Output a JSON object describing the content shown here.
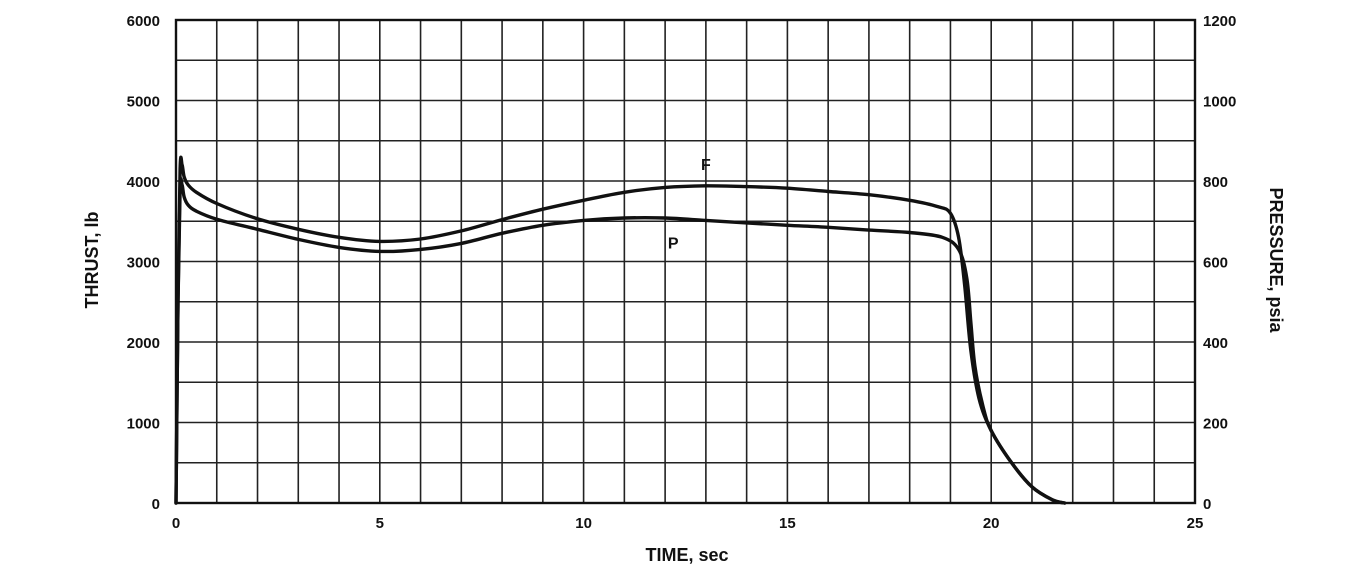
{
  "chart_data": {
    "type": "line",
    "title": "",
    "xlabel": "TIME, sec",
    "ylabel_left": "THRUST, lb",
    "ylabel_right": "PRESSURE, psia",
    "xlim": [
      0,
      25
    ],
    "ylim_left": [
      0,
      6000
    ],
    "ylim_right": [
      0,
      1200
    ],
    "grid": true,
    "x_ticks": [
      0,
      5,
      10,
      15,
      20,
      25
    ],
    "y_left_ticks": [
      0,
      1000,
      2000,
      3000,
      4000,
      5000,
      6000
    ],
    "y_right_ticks": [
      0,
      200,
      400,
      600,
      800,
      1000,
      1200
    ],
    "series": [
      {
        "name": "F",
        "axis": "left",
        "x": [
          0,
          0.05,
          0.1,
          0.15,
          0.2,
          0.3,
          0.5,
          1,
          2,
          3,
          4,
          5,
          6,
          7,
          8,
          9,
          10,
          11,
          12,
          13,
          14,
          15,
          16,
          17,
          18,
          18.7,
          19,
          19.2,
          19.35,
          19.5,
          19.7,
          20,
          20.5,
          21,
          21.5,
          21.8
        ],
        "y": [
          0,
          2500,
          4150,
          4200,
          4050,
          3950,
          3860,
          3720,
          3530,
          3400,
          3300,
          3250,
          3280,
          3380,
          3520,
          3650,
          3760,
          3860,
          3920,
          3940,
          3930,
          3910,
          3870,
          3830,
          3760,
          3680,
          3600,
          3300,
          2700,
          1900,
          1300,
          900,
          500,
          200,
          40,
          0
        ]
      },
      {
        "name": "P",
        "axis": "right",
        "x": [
          0,
          0.05,
          0.1,
          0.15,
          0.2,
          0.3,
          0.5,
          1,
          2,
          3,
          4,
          5,
          6,
          7,
          8,
          9,
          10,
          11,
          12,
          13,
          14,
          15,
          16,
          17,
          18,
          18.8,
          19.2,
          19.4,
          19.5,
          19.6,
          19.8,
          20,
          20.5,
          21,
          21.5,
          21.8
        ],
        "y": [
          0,
          500,
          780,
          790,
          760,
          740,
          725,
          705,
          680,
          655,
          635,
          625,
          630,
          645,
          670,
          690,
          702,
          708,
          708,
          702,
          696,
          690,
          685,
          678,
          672,
          660,
          630,
          560,
          450,
          340,
          240,
          180,
          100,
          40,
          8,
          0
        ]
      }
    ]
  }
}
